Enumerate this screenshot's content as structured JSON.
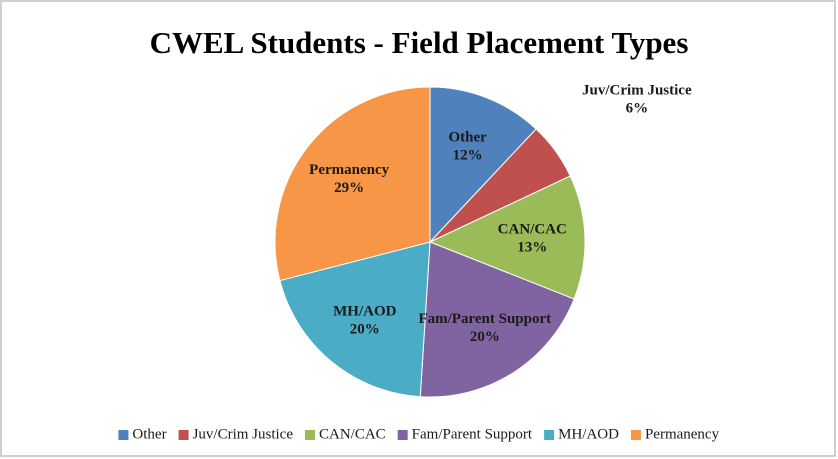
{
  "chart_data": {
    "type": "pie",
    "title": "CWEL Students - Field Placement Types",
    "categories": [
      "Other",
      "Juv/Crim Justice",
      "CAN/CAC",
      "Fam/Parent Support",
      "MH/AOD",
      "Permanency"
    ],
    "values": [
      12,
      6,
      13,
      20,
      20,
      29
    ],
    "value_labels": [
      "12%",
      "6%",
      "13%",
      "20%",
      "20%",
      "29%"
    ],
    "colors": [
      "#4f81bd",
      "#c0504d",
      "#9bbb59",
      "#8064a2",
      "#4bacc6",
      "#f79646"
    ],
    "legend": "bottom"
  }
}
